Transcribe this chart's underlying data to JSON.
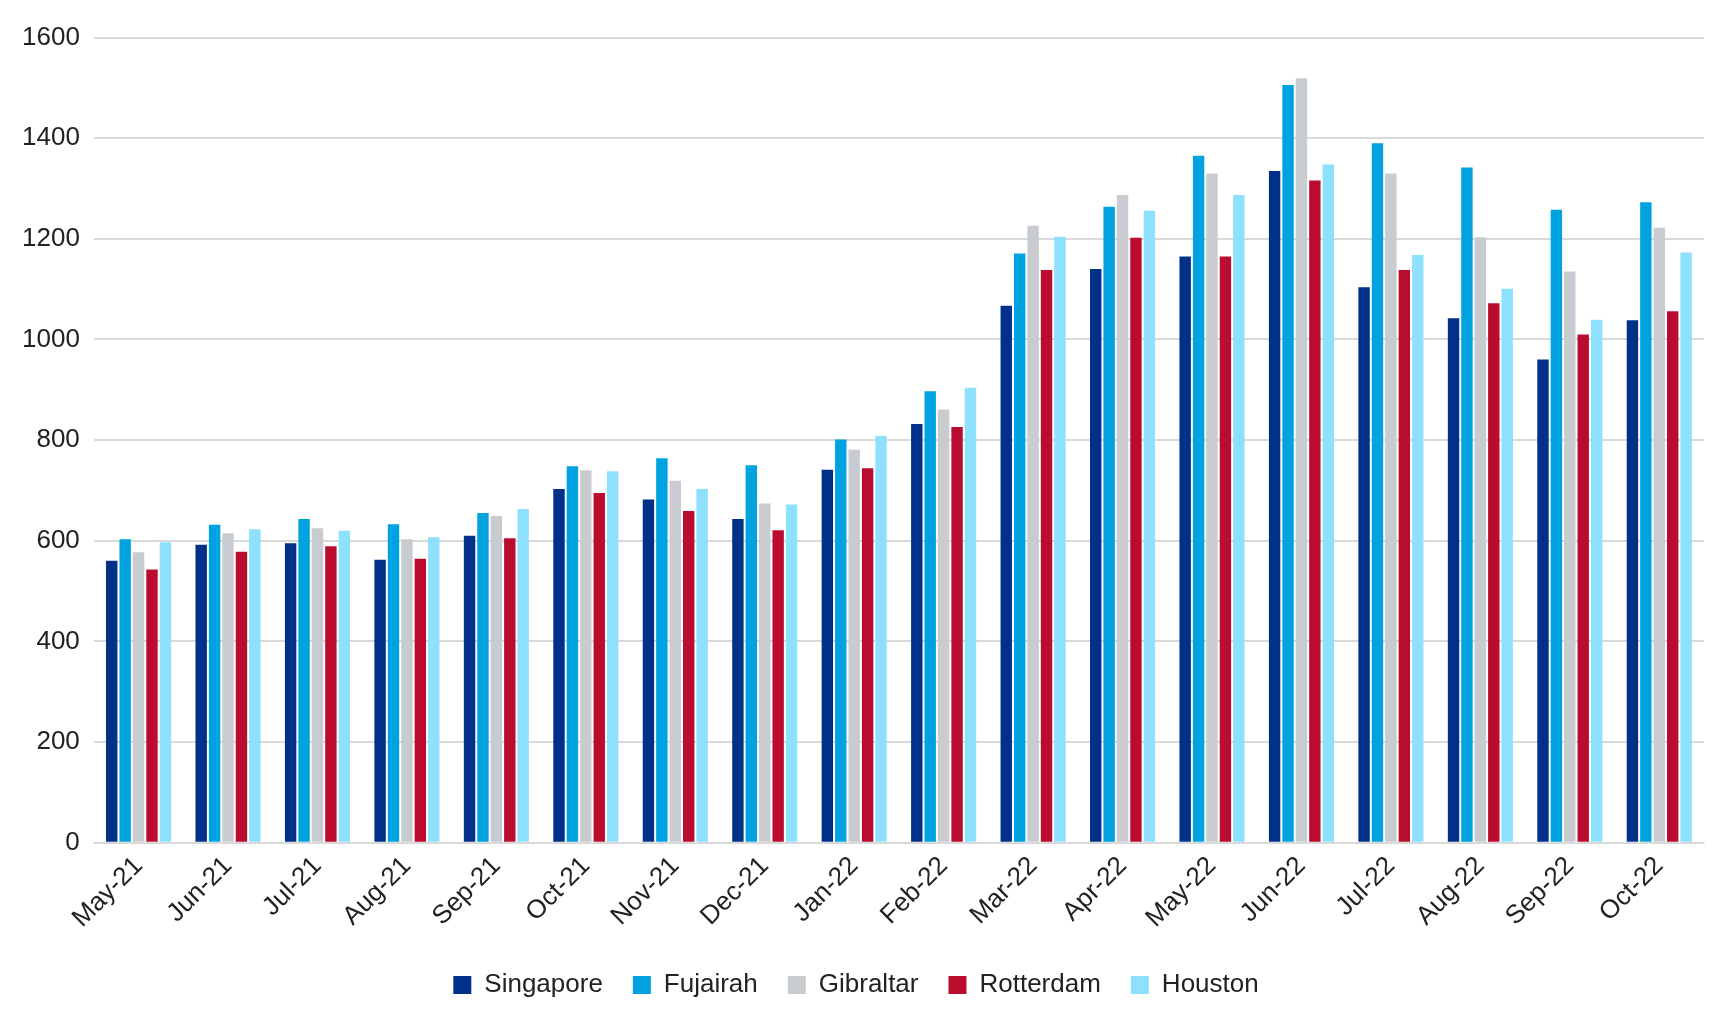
{
  "chart_data": {
    "type": "bar",
    "categories": [
      "May-21",
      "Jun-21",
      "Jul-21",
      "Aug-21",
      "Sep-21",
      "Oct-21",
      "Nov-21",
      "Dec-21",
      "Jan-22",
      "Feb-22",
      "Mar-22",
      "Apr-22",
      "May-22",
      "Jun-22",
      "Jul-22",
      "Aug-22",
      "Sep-22",
      "Oct-22"
    ],
    "series": [
      {
        "name": "Singapore",
        "color": "#003087",
        "values": [
          560,
          592,
          595,
          562,
          610,
          703,
          682,
          643,
          741,
          832,
          1067,
          1140,
          1165,
          1335,
          1104,
          1042,
          960,
          1038
        ]
      },
      {
        "name": "Fujairah",
        "color": "#00a3e0",
        "values": [
          603,
          632,
          643,
          633,
          655,
          748,
          764,
          750,
          801,
          897,
          1171,
          1264,
          1365,
          1506,
          1390,
          1342,
          1258,
          1273
        ]
      },
      {
        "name": "Gibraltar",
        "color": "#c8cbcf",
        "values": [
          577,
          615,
          625,
          603,
          649,
          740,
          719,
          674,
          781,
          861,
          1226,
          1287,
          1330,
          1519,
          1330,
          1203,
          1135,
          1222
        ]
      },
      {
        "name": "Rotterdam",
        "color": "#ba0c2f",
        "values": [
          543,
          578,
          589,
          564,
          605,
          695,
          659,
          621,
          744,
          826,
          1138,
          1202,
          1165,
          1316,
          1138,
          1072,
          1010,
          1056
        ]
      },
      {
        "name": "Houston",
        "color": "#8ee0ff",
        "values": [
          597,
          623,
          620,
          607,
          663,
          738,
          703,
          672,
          808,
          904,
          1204,
          1256,
          1287,
          1348,
          1168,
          1101,
          1039,
          1173
        ]
      }
    ],
    "ylim": [
      0,
      1600
    ],
    "yticks": [
      0,
      200,
      400,
      600,
      800,
      1000,
      1200,
      1400,
      1600
    ],
    "grid": "y",
    "legend": "bottom"
  }
}
